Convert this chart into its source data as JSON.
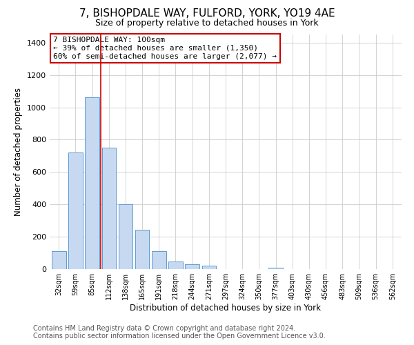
{
  "title": "7, BISHOPDALE WAY, FULFORD, YORK, YO19 4AE",
  "subtitle": "Size of property relative to detached houses in York",
  "xlabel": "Distribution of detached houses by size in York",
  "ylabel": "Number of detached properties",
  "bar_labels": [
    "32sqm",
    "59sqm",
    "85sqm",
    "112sqm",
    "138sqm",
    "165sqm",
    "191sqm",
    "218sqm",
    "244sqm",
    "271sqm",
    "297sqm",
    "324sqm",
    "350sqm",
    "377sqm",
    "403sqm",
    "430sqm",
    "456sqm",
    "483sqm",
    "509sqm",
    "536sqm",
    "562sqm"
  ],
  "bar_values": [
    110,
    720,
    1060,
    750,
    400,
    245,
    110,
    48,
    28,
    22,
    0,
    0,
    0,
    10,
    0,
    0,
    0,
    0,
    0,
    0,
    0
  ],
  "bar_color": "#c6d9f0",
  "bar_edge_color": "#5b9bd5",
  "ylim": [
    0,
    1450
  ],
  "yticks": [
    0,
    200,
    400,
    600,
    800,
    1000,
    1200,
    1400
  ],
  "vline_color": "#cc0000",
  "annotation_line1": "7 BISHOPDALE WAY: 100sqm",
  "annotation_line2": "← 39% of detached houses are smaller (1,350)",
  "annotation_line3": "60% of semi-detached houses are larger (2,077) →",
  "annotation_box_color": "#ffffff",
  "annotation_box_edge_color": "#cc0000",
  "footer_line1": "Contains HM Land Registry data © Crown copyright and database right 2024.",
  "footer_line2": "Contains public sector information licensed under the Open Government Licence v3.0.",
  "background_color": "#ffffff",
  "plot_background_color": "#ffffff",
  "grid_color": "#cccccc",
  "title_fontsize": 11,
  "subtitle_fontsize": 9,
  "footer_fontsize": 7
}
